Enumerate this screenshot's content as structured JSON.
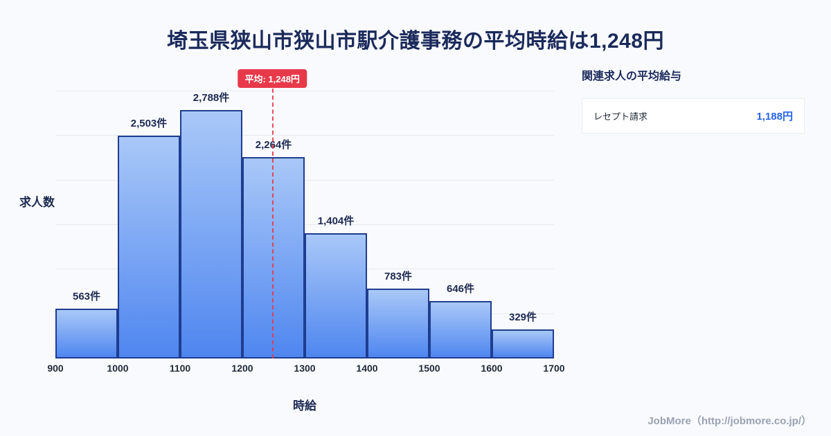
{
  "title": "埼玉県狭山市狭山市駅介護事務の平均時給は1,248円",
  "chart_data": {
    "type": "bar",
    "subtype": "histogram",
    "x_ticks": [
      900,
      1000,
      1100,
      1200,
      1300,
      1400,
      1500,
      1600,
      1700
    ],
    "categories": [
      "900-1000",
      "1000-1100",
      "1100-1200",
      "1200-1300",
      "1300-1400",
      "1400-1500",
      "1500-1600",
      "1600-1700"
    ],
    "values": [
      563,
      2503,
      2788,
      2264,
      1404,
      783,
      646,
      329
    ],
    "value_labels": [
      "563件",
      "2,503件",
      "2,788件",
      "2,264件",
      "1,404件",
      "783件",
      "646件",
      "329件"
    ],
    "xlabel": "時給",
    "ylabel": "求人数",
    "ylim": [
      0,
      3250
    ],
    "y_gridlines": [
      500,
      1000,
      1500,
      2000,
      2500,
      3000
    ],
    "grid": true,
    "legend_position": "none",
    "average_line": {
      "value": 1248,
      "label": "平均: 1,248円",
      "color": "#e8394a"
    },
    "bar_border_color": "#1e3d8f",
    "bar_fill_top": "#a9c8f8",
    "bar_fill_bottom": "#4f86ef"
  },
  "side_panel": {
    "heading": "関連求人の平均給与",
    "items": [
      {
        "label": "レセプト請求",
        "value": "1,188円"
      }
    ]
  },
  "footer": {
    "credit": "JobMore（http://jobmore.co.jp/）"
  }
}
